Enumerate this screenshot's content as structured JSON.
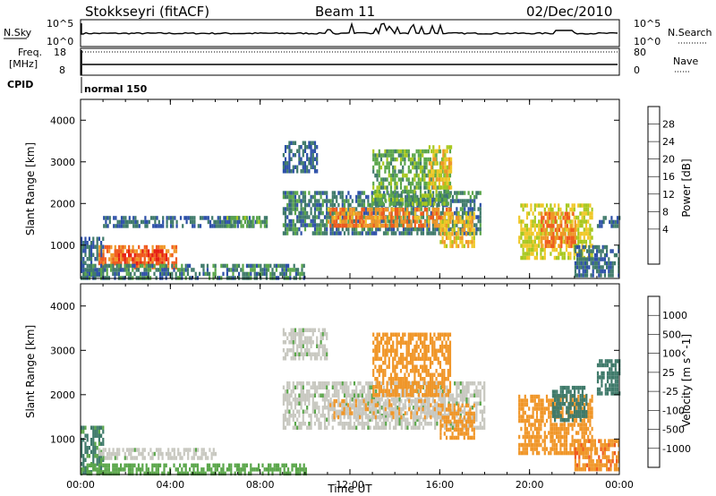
{
  "header": {
    "site": "Stokkseyri (fitACF)",
    "beam": "Beam 11",
    "date": "02/Dec/2010"
  },
  "summary": {
    "nsky_label": "N.Sky",
    "nsearch_label": "N.Search",
    "nsky_ticks": [
      "10^5",
      "10^0"
    ],
    "nsearch_ticks": [
      "10^5",
      "10^0"
    ],
    "freq_label": "Freq.",
    "freq_unit": "[MHz]",
    "freq_ticks": [
      "18",
      "8"
    ],
    "nave_label": "Nave",
    "nave_ticks": [
      "80",
      "0"
    ],
    "cpid_label": "CPID",
    "cpid_value": "normal 150"
  },
  "colors": {
    "power": [
      "#1428e6",
      "#2d50a8",
      "#3f7a6a",
      "#5aa64a",
      "#a8c81e",
      "#f0c828",
      "#f09628",
      "#f05a1e",
      "#e61e14"
    ],
    "velocity": [
      "#1428e6",
      "#2d50a8",
      "#3f7a6a",
      "#5aa64a",
      "#c8c8c0",
      "#c8c8c0",
      "#f09628",
      "#f05a1e",
      "#e61e14"
    ]
  },
  "chart_data": [
    {
      "type": "heatmap",
      "name": "power",
      "xlabel": "",
      "ylabel": "Slant Range [km]",
      "colorbar_label": "Power [dB]",
      "colorbar_ticks": [
        "28",
        "24",
        "20",
        "16",
        "12",
        "8",
        "4"
      ],
      "colorbar_levels": [
        0,
        4,
        8,
        12,
        16,
        20,
        24,
        28,
        32
      ],
      "x_ticks": [
        "00:00",
        "04:00",
        "08:00",
        "12:00",
        "16:00",
        "20:00",
        "00:00"
      ],
      "x_range_hours": [
        0,
        24
      ],
      "y_range": [
        200,
        4500
      ],
      "y_ticks": [
        1000,
        2000,
        3000,
        4000
      ],
      "regions": [
        {
          "t": [
            0.0,
            1.0
          ],
          "r": [
            300,
            1200
          ],
          "v": 8
        },
        {
          "t": [
            0.8,
            4.3
          ],
          "r": [
            500,
            1000
          ],
          "v": 28
        },
        {
          "t": [
            1.5,
            3.8
          ],
          "r": [
            600,
            900
          ],
          "v": 31
        },
        {
          "t": [
            0.0,
            10.0
          ],
          "r": [
            250,
            550
          ],
          "v": 10
        },
        {
          "t": [
            1.0,
            8.0
          ],
          "r": [
            1500,
            1700
          ],
          "v": 8
        },
        {
          "t": [
            6.5,
            8.3
          ],
          "r": [
            1500,
            1700
          ],
          "v": 14
        },
        {
          "t": [
            9.0,
            17.8
          ],
          "r": [
            1300,
            2300
          ],
          "v": 10
        },
        {
          "t": [
            11.0,
            16.5
          ],
          "r": [
            1500,
            1900
          ],
          "v": 27
        },
        {
          "t": [
            13.0,
            16.5
          ],
          "r": [
            2000,
            3300
          ],
          "v": 14
        },
        {
          "t": [
            15.5,
            16.5
          ],
          "r": [
            2400,
            3400
          ],
          "v": 22
        },
        {
          "t": [
            9.0,
            10.5
          ],
          "r": [
            2800,
            3500
          ],
          "v": 8
        },
        {
          "t": [
            16.0,
            17.5
          ],
          "r": [
            1000,
            1800
          ],
          "v": 23
        },
        {
          "t": [
            19.5,
            22.8
          ],
          "r": [
            700,
            2000
          ],
          "v": 20
        },
        {
          "t": [
            20.5,
            22.0
          ],
          "r": [
            1000,
            1800
          ],
          "v": 28
        },
        {
          "t": [
            22.0,
            24.0
          ],
          "r": [
            300,
            1000
          ],
          "v": 8
        },
        {
          "t": [
            23.0,
            24.0
          ],
          "r": [
            1500,
            1700
          ],
          "v": 8
        }
      ]
    },
    {
      "type": "heatmap",
      "name": "velocity",
      "xlabel": "Time UT",
      "ylabel": "Slant Range [km]",
      "colorbar_label": "Velocity [m s^-1]",
      "colorbar_ticks": [
        "1000",
        "500",
        "100",
        "25",
        "-25",
        "-100",
        "-500",
        "-1000"
      ],
      "colorbar_levels": [
        1500,
        1000,
        500,
        100,
        25,
        -25,
        -100,
        -500,
        -1000,
        -1500
      ],
      "x_ticks": [
        "00:00",
        "04:00",
        "08:00",
        "12:00",
        "16:00",
        "20:00",
        "00:00"
      ],
      "x_range_hours": [
        0,
        24
      ],
      "y_range": [
        200,
        4500
      ],
      "y_ticks": [
        1000,
        2000,
        3000,
        4000
      ],
      "regions": [
        {
          "t": [
            0.0,
            1.0
          ],
          "r": [
            300,
            1300
          ],
          "v": 150
        },
        {
          "t": [
            0.8,
            6.0
          ],
          "r": [
            550,
            800
          ],
          "v": 0
        },
        {
          "t": [
            0.0,
            10.0
          ],
          "r": [
            250,
            450
          ],
          "v": 60
        },
        {
          "t": [
            9.0,
            18.0
          ],
          "r": [
            1300,
            2300
          ],
          "v": 0
        },
        {
          "t": [
            11.0,
            16.0
          ],
          "r": [
            1500,
            1900
          ],
          "v": -80
        },
        {
          "t": [
            13.0,
            16.5
          ],
          "r": [
            2000,
            3400
          ],
          "v": -300
        },
        {
          "t": [
            9.0,
            11.0
          ],
          "r": [
            2800,
            3500
          ],
          "v": 0
        },
        {
          "t": [
            16.0,
            17.5
          ],
          "r": [
            1000,
            1800
          ],
          "v": -300
        },
        {
          "t": [
            19.5,
            22.8
          ],
          "r": [
            700,
            2000
          ],
          "v": -300
        },
        {
          "t": [
            21.0,
            22.5
          ],
          "r": [
            1400,
            2200
          ],
          "v": 200
        },
        {
          "t": [
            22.0,
            24.0
          ],
          "r": [
            300,
            1000
          ],
          "v": -400
        },
        {
          "t": [
            23.0,
            24.0
          ],
          "r": [
            2000,
            2800
          ],
          "v": 300
        }
      ]
    }
  ]
}
